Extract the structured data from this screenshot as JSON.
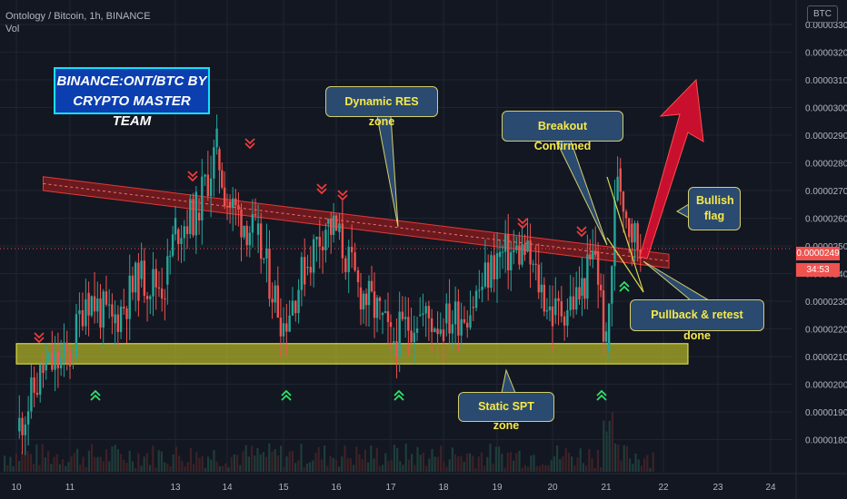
{
  "header": {
    "symbol_line": "Ontology / Bitcoin, 1h, BINANCE",
    "vol_label": "Vol"
  },
  "currency_button": "BTC",
  "banner": {
    "line1": "BINANCE:ONT/BTC BY",
    "line2": "CRYPTO MASTER TEAM"
  },
  "price_scale": {
    "ticks": [
      "0.0000330",
      "0.0000320",
      "0.0000310",
      "0.0000300",
      "0.0000290",
      "0.0000280",
      "0.0000270",
      "0.0000260",
      "0.0000250",
      "0.0000240",
      "0.0000230",
      "0.0000220",
      "0.0000210",
      "0.0000200",
      "0.0000190",
      "0.0000180"
    ],
    "last_price": "0.0000249",
    "countdown": "34:53"
  },
  "time_scale": {
    "ticks": [
      "10",
      "11",
      "13",
      "14",
      "15",
      "16",
      "17",
      "18",
      "19",
      "20",
      "21",
      "22",
      "23",
      "24"
    ]
  },
  "callouts": {
    "dynamic_res": "Dynamic RES zone",
    "breakout": "Breakout Confirmed",
    "bullish_flag_line1": "Bullish",
    "bullish_flag_line2": "flag",
    "pullback": "Pullback & retest done",
    "static_spt": "Static SPT zone"
  },
  "colors": {
    "background": "#131722",
    "up_candle": "#26a69a",
    "down_candle": "#ef5350",
    "resistance_zone": "#b71c1c",
    "support_zone": "#e6e62a",
    "callout_bg": "#2b4a6f",
    "callout_text": "#f6e94a",
    "bull_arrow": "#c8102e"
  },
  "chart_data": {
    "type": "candlestick",
    "title": "Ontology / Bitcoin, 1h, BINANCE",
    "x_axis_ticks": [
      "10",
      "11",
      "13",
      "14",
      "15",
      "16",
      "17",
      "18",
      "19",
      "20",
      "21",
      "22",
      "23",
      "24"
    ],
    "y_axis_range": [
      1.76e-05,
      3.36e-05
    ],
    "close_series": [
      {
        "x": "10",
        "y": 1.83e-05
      },
      {
        "x": "10.5",
        "y": 2.05e-05
      },
      {
        "x": "11",
        "y": 2.1e-05
      },
      {
        "x": "11.3",
        "y": 2.33e-05
      },
      {
        "x": "11.8",
        "y": 2.22e-05
      },
      {
        "x": "12.3",
        "y": 2.38e-05
      },
      {
        "x": "12.8",
        "y": 2.36e-05
      },
      {
        "x": "13",
        "y": 2.56e-05
      },
      {
        "x": "13.4",
        "y": 2.62e-05
      },
      {
        "x": "13.8",
        "y": 2.85e-05
      },
      {
        "x": "14",
        "y": 2.66e-05
      },
      {
        "x": "14.5",
        "y": 2.54e-05
      },
      {
        "x": "15",
        "y": 2.22e-05
      },
      {
        "x": "15.4",
        "y": 2.42e-05
      },
      {
        "x": "15.8",
        "y": 2.58e-05
      },
      {
        "x": "16",
        "y": 2.55e-05
      },
      {
        "x": "16.4",
        "y": 2.35e-05
      },
      {
        "x": "16.8",
        "y": 2.25e-05
      },
      {
        "x": "17",
        "y": 2.15e-05
      },
      {
        "x": "17.5",
        "y": 2.25e-05
      },
      {
        "x": "18",
        "y": 2.22e-05
      },
      {
        "x": "18.5",
        "y": 2.28e-05
      },
      {
        "x": "19",
        "y": 2.46e-05
      },
      {
        "x": "19.5",
        "y": 2.48e-05
      },
      {
        "x": "20",
        "y": 2.25e-05
      },
      {
        "x": "20.5",
        "y": 2.32e-05
      },
      {
        "x": "20.8",
        "y": 2.48e-05
      },
      {
        "x": "21",
        "y": 2.12e-05
      },
      {
        "x": "21.2",
        "y": 2.78e-05
      },
      {
        "x": "21.4",
        "y": 2.58e-05
      },
      {
        "x": "21.6",
        "y": 2.49e-05
      }
    ],
    "resistance_zone": {
      "from": {
        "x": "10.5",
        "y_top": 2.75e-05,
        "y_bottom": 2.7e-05
      },
      "to": {
        "x": "22",
        "y_top": 2.47e-05,
        "y_bottom": 2.42e-05
      }
    },
    "support_zone": {
      "y_top": 2.15e-05,
      "y_bottom": 2.07e-05
    },
    "last_price": 2.49e-05
  }
}
